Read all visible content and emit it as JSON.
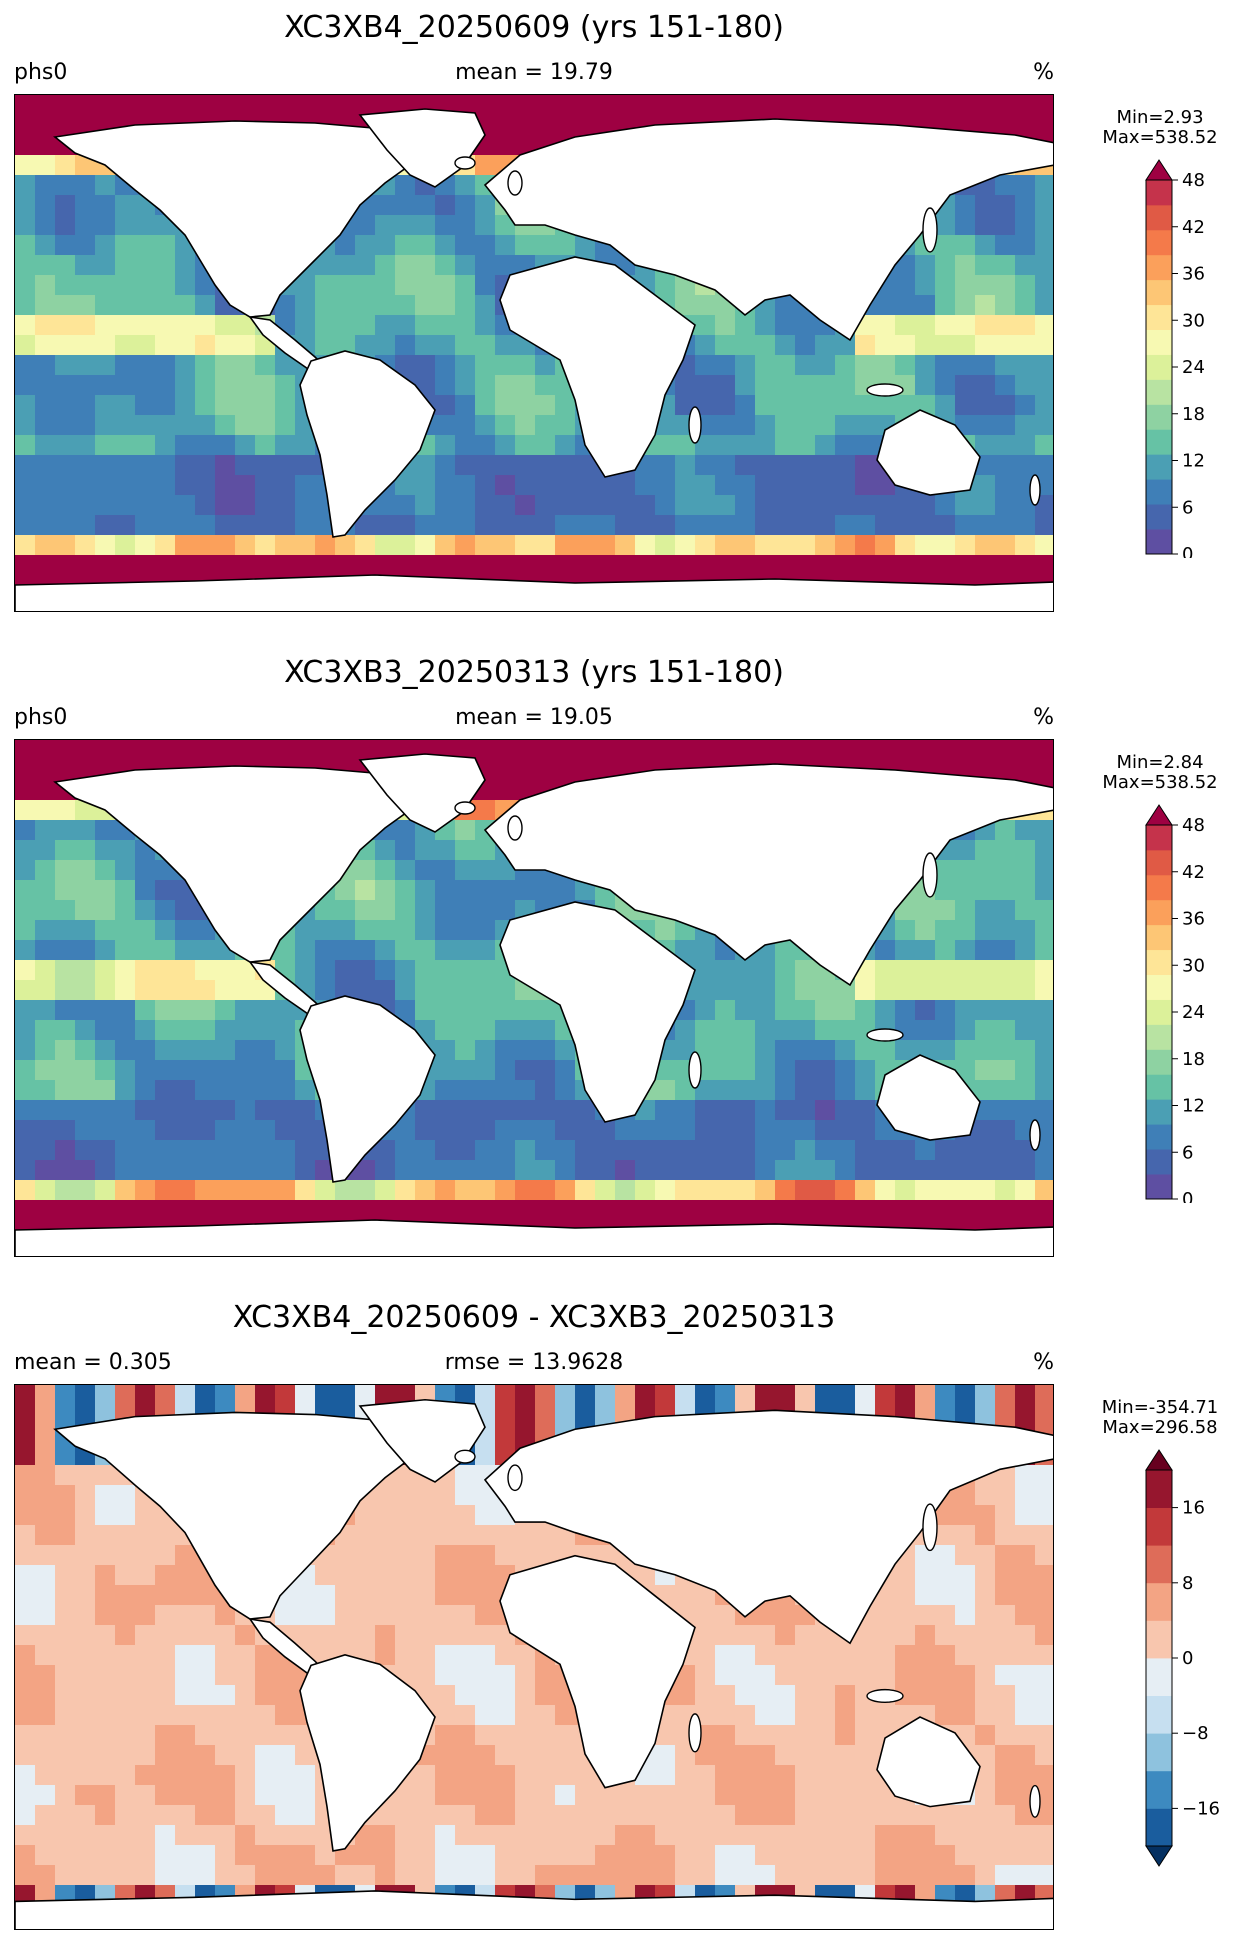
{
  "colormaps": {
    "field": [
      "#5e4fa2",
      "#4666ad",
      "#3f7fb7",
      "#4b9fb4",
      "#66c2a5",
      "#8ed2a2",
      "#b8e3a2",
      "#dcf19a",
      "#f7f9b2",
      "#fee597",
      "#fdc675",
      "#fba05b",
      "#f47a4a",
      "#e05a45",
      "#c5334b",
      "#9e0142"
    ],
    "diff": [
      "#053061",
      "#1a5d9e",
      "#3d8ac0",
      "#8ec2de",
      "#c6dff0",
      "#e6eef4",
      "#f8c6ae",
      "#f3a484",
      "#de6c59",
      "#c2393a",
      "#96162e",
      "#67001f"
    ]
  },
  "panels": [
    {
      "title": "XC3XB4_20250609 (yrs 151-180)",
      "left_label": "phs0",
      "center_label": "mean = 19.79",
      "units": "%",
      "min_label": "Min=2.93",
      "max_label": "Max=538.52",
      "colorbar": {
        "type": "field",
        "ticks": [
          "0",
          "6",
          "12",
          "18",
          "24",
          "30",
          "36",
          "42",
          "48"
        ],
        "extend": "max"
      }
    },
    {
      "title": "XC3XB3_20250313 (yrs 151-180)",
      "left_label": "phs0",
      "center_label": "mean = 19.05",
      "units": "%",
      "min_label": "Min=2.84",
      "max_label": "Max=538.52",
      "colorbar": {
        "type": "field",
        "ticks": [
          "0",
          "6",
          "12",
          "18",
          "24",
          "30",
          "36",
          "42",
          "48"
        ],
        "extend": "max"
      }
    },
    {
      "title": "XC3XB4_20250609 - XC3XB3_20250313",
      "left_label": "mean = 0.305",
      "center_label": "rmse = 13.9628",
      "units": "%",
      "min_label": "Min=-354.71",
      "max_label": "Max=296.58",
      "colorbar": {
        "type": "diff",
        "ticks": [
          "−16",
          "−8",
          "0",
          "8",
          "16"
        ],
        "extend": "both"
      }
    }
  ]
}
